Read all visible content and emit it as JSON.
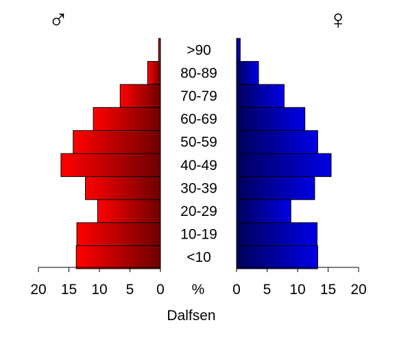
{
  "chart_data": {
    "type": "bar",
    "orientation": "horizontal",
    "title": "Dalfsen",
    "unit_label": "%",
    "categories": [
      ">90",
      "80-89",
      "70-79",
      "60-69",
      "50-59",
      "40-49",
      "30-39",
      "20-29",
      "10-19",
      "<10"
    ],
    "series": [
      {
        "name": "♂",
        "values": [
          0.3,
          2.1,
          6.6,
          11.0,
          14.3,
          16.3,
          12.3,
          10.3,
          13.7,
          13.8
        ]
      },
      {
        "name": "♀",
        "values": [
          0.6,
          3.6,
          7.8,
          11.2,
          13.3,
          15.5,
          12.8,
          8.9,
          13.2,
          13.3
        ]
      }
    ],
    "xlim": [
      0,
      20
    ],
    "ticks": [
      20,
      15,
      10,
      5,
      0
    ],
    "tick_labels_left": [
      "20",
      "15",
      "10",
      "5",
      "0"
    ],
    "tick_labels_right": [
      "0",
      "5",
      "10",
      "15",
      "20"
    ],
    "colors": {
      "male_light": "#ff0000",
      "male_dark": "#6e0000",
      "female_light": "#0000e6",
      "female_dark": "#00005a",
      "outline": "#000000"
    }
  }
}
